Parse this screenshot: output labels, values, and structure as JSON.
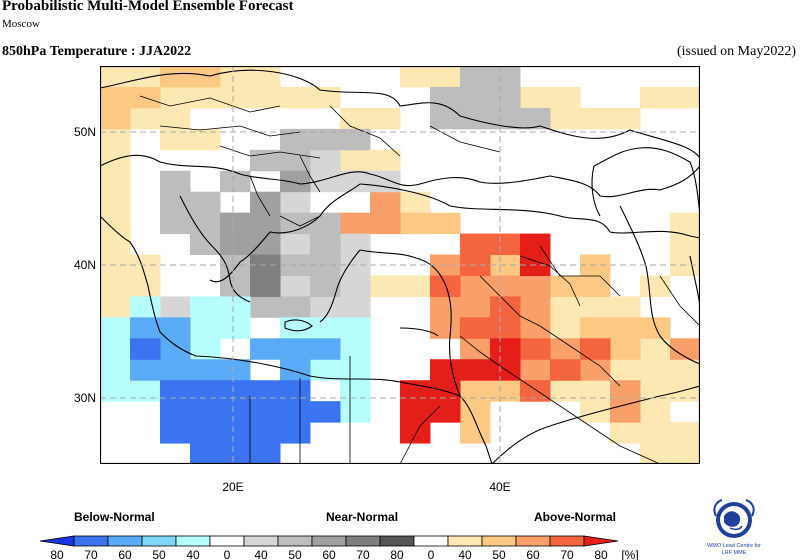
{
  "header": {
    "title": "Probabilistic Multi-Model Ensemble Forecast",
    "subtitle": "Moscow",
    "variable": "850hPa Temperature : JJA2022",
    "issued": "(issued on May2022)"
  },
  "map": {
    "lat_ticks": [
      "50N",
      "40N",
      "30N"
    ],
    "lon_ticks": [
      "20E",
      "40E"
    ],
    "colors": {
      "above": [
        "#fbe8b3",
        "#fcc984",
        "#f9a06a",
        "#f3643f",
        "#e41f1a"
      ],
      "near": [
        "#d6d6d6",
        "#bdbdbd",
        "#a0a0a0",
        "#7f7f7f",
        "#555555"
      ],
      "below": [
        "#b6fdfd",
        "#7fd6f7",
        "#5aabf5",
        "#3b74f0",
        "#1a36e6"
      ]
    },
    "cells": [
      {
        "c": "A1",
        "r": [
          [
            0,
            0,
            2,
            1
          ],
          [
            4,
            0,
            2,
            1
          ],
          [
            2,
            1,
            6,
            1
          ],
          [
            10,
            0,
            2,
            1
          ],
          [
            12,
            1,
            4,
            1
          ],
          [
            16,
            2,
            2,
            1
          ],
          [
            18,
            1,
            2,
            1
          ],
          [
            14,
            2,
            2,
            1
          ],
          [
            8,
            2,
            2,
            1
          ],
          [
            1,
            2,
            2,
            1
          ],
          [
            0,
            3,
            1,
            5
          ],
          [
            0,
            8,
            1,
            5
          ],
          [
            1,
            9,
            1,
            4
          ],
          [
            0,
            13,
            1,
            2
          ],
          [
            19,
            7,
            1,
            3
          ],
          [
            17,
            11,
            1,
            1
          ],
          [
            15,
            11,
            3,
            1
          ],
          [
            18,
            10,
            1,
            1
          ],
          [
            14,
            12,
            2,
            1
          ],
          [
            18,
            13,
            2,
            1
          ],
          [
            17,
            14,
            3,
            1
          ],
          [
            15,
            15,
            5,
            1
          ],
          [
            16,
            16,
            3,
            1
          ],
          [
            17,
            17,
            3,
            1
          ],
          [
            18,
            18,
            2,
            1
          ],
          [
            17,
            16,
            1,
            1
          ],
          [
            9,
            10,
            1,
            1
          ],
          [
            10,
            10,
            3,
            1
          ],
          [
            13,
            9,
            2,
            1
          ],
          [
            10,
            6,
            1,
            2
          ],
          [
            8,
            4,
            2,
            1
          ],
          [
            2,
            3,
            2,
            1
          ]
        ]
      },
      {
        "c": "A2",
        "r": [
          [
            1,
            1,
            1,
            1
          ],
          [
            2,
            0,
            2,
            1
          ],
          [
            0,
            1,
            1,
            1
          ],
          [
            0,
            2,
            1,
            1
          ],
          [
            9,
            7,
            3,
            1
          ],
          [
            12,
            8,
            3,
            1
          ],
          [
            13,
            9,
            1,
            1
          ],
          [
            16,
            9,
            1,
            2
          ],
          [
            13,
            13,
            2,
            1
          ],
          [
            12,
            15,
            2,
            1
          ],
          [
            11,
            14,
            2,
            1
          ],
          [
            10,
            17,
            1,
            1
          ],
          [
            12,
            16,
            1,
            2
          ],
          [
            16,
            12,
            3,
            1
          ],
          [
            17,
            13,
            1,
            1
          ],
          [
            15,
            10,
            2,
            1
          ]
        ]
      },
      {
        "c": "A3",
        "r": [
          [
            9,
            6,
            1,
            2
          ],
          [
            8,
            7,
            1,
            1
          ],
          [
            11,
            9,
            1,
            1
          ],
          [
            12,
            10,
            3,
            1
          ],
          [
            14,
            11,
            1,
            1
          ],
          [
            11,
            11,
            1,
            1
          ],
          [
            12,
            11,
            2,
            1
          ],
          [
            11,
            12,
            2,
            1
          ],
          [
            14,
            12,
            1,
            1
          ],
          [
            12,
            13,
            1,
            1
          ],
          [
            15,
            13,
            1,
            2
          ],
          [
            14,
            14,
            1,
            1
          ],
          [
            16,
            14,
            1,
            1
          ],
          [
            17,
            15,
            1,
            2
          ],
          [
            19,
            13,
            1,
            1
          ]
        ]
      },
      {
        "c": "A4",
        "r": [
          [
            12,
            8,
            1,
            2
          ],
          [
            13,
            8,
            2,
            1
          ],
          [
            13,
            11,
            1,
            1
          ],
          [
            11,
            10,
            1,
            1
          ],
          [
            13,
            12,
            1,
            1
          ],
          [
            12,
            12,
            1,
            1
          ],
          [
            14,
            13,
            1,
            1
          ],
          [
            16,
            13,
            1,
            1
          ],
          [
            15,
            14,
            1,
            1
          ],
          [
            11,
            15,
            1,
            2
          ],
          [
            14,
            15,
            1,
            1
          ]
        ]
      },
      {
        "c": "A5",
        "r": [
          [
            14,
            8,
            1,
            2
          ],
          [
            13,
            13,
            1,
            1
          ],
          [
            12,
            14,
            2,
            1
          ],
          [
            11,
            14,
            1,
            1
          ],
          [
            11,
            15,
            1,
            1
          ],
          [
            10,
            15,
            1,
            1
          ],
          [
            10,
            16,
            1,
            1
          ],
          [
            11,
            16,
            1,
            1
          ],
          [
            10,
            17,
            1,
            1
          ]
        ]
      },
      {
        "c": "N1",
        "r": [
          [
            7,
            4,
            1,
            1
          ],
          [
            7,
            5,
            3,
            1
          ],
          [
            6,
            6,
            1,
            1
          ],
          [
            6,
            8,
            1,
            1
          ],
          [
            8,
            8,
            1,
            1
          ],
          [
            8,
            9,
            1,
            1
          ],
          [
            6,
            10,
            1,
            1
          ],
          [
            8,
            10,
            1,
            1
          ],
          [
            8,
            11,
            1,
            1
          ],
          [
            7,
            11,
            1,
            1
          ],
          [
            1,
            11,
            2,
            1
          ],
          [
            0,
            12,
            1,
            1
          ]
        ]
      },
      {
        "c": "N2",
        "r": [
          [
            12,
            0,
            2,
            1
          ],
          [
            11,
            1,
            2,
            1
          ],
          [
            11,
            2,
            4,
            1
          ],
          [
            13,
            1,
            1,
            1
          ],
          [
            8,
            3,
            1,
            1
          ],
          [
            6,
            3,
            2,
            1
          ],
          [
            5,
            4,
            2,
            1
          ],
          [
            4,
            5,
            1,
            1
          ],
          [
            2,
            5,
            1,
            1
          ],
          [
            2,
            6,
            2,
            1
          ],
          [
            2,
            7,
            2,
            1
          ],
          [
            3,
            8,
            2,
            1
          ],
          [
            4,
            9,
            2,
            1
          ],
          [
            4,
            10,
            2,
            1
          ],
          [
            5,
            11,
            1,
            1
          ],
          [
            6,
            7,
            1,
            1
          ],
          [
            7,
            7,
            1,
            1
          ],
          [
            7,
            8,
            1,
            1
          ],
          [
            6,
            9,
            2,
            1
          ],
          [
            7,
            10,
            1,
            1
          ],
          [
            6,
            11,
            1,
            1
          ]
        ]
      },
      {
        "c": "N3",
        "r": [
          [
            5,
            6,
            1,
            1
          ],
          [
            4,
            7,
            1,
            1
          ],
          [
            5,
            7,
            1,
            1
          ],
          [
            4,
            8,
            1,
            1
          ],
          [
            5,
            8,
            1,
            1
          ],
          [
            6,
            5,
            1,
            1
          ]
        ]
      },
      {
        "c": "N4",
        "r": [
          [
            5,
            9,
            1,
            1
          ],
          [
            5,
            10,
            1,
            1
          ]
        ]
      },
      {
        "c": "B1",
        "r": [
          [
            1,
            11,
            1,
            1
          ],
          [
            3,
            11,
            2,
            1
          ],
          [
            0,
            12,
            1,
            2
          ],
          [
            1,
            12,
            1,
            1
          ],
          [
            3,
            12,
            2,
            1
          ],
          [
            6,
            12,
            3,
            1
          ],
          [
            3,
            13,
            1,
            1
          ],
          [
            0,
            14,
            1,
            1
          ],
          [
            0,
            15,
            2,
            1
          ],
          [
            7,
            14,
            2,
            1
          ],
          [
            8,
            15,
            1,
            1
          ],
          [
            7,
            16,
            1,
            1
          ],
          [
            8,
            16,
            1,
            1
          ],
          [
            8,
            13,
            1,
            1
          ]
        ]
      },
      {
        "c": "B2",
        "r": [
          [
            1,
            12,
            2,
            1
          ],
          [
            2,
            13,
            1,
            1
          ],
          [
            1,
            14,
            4,
            1
          ],
          [
            5,
            13,
            3,
            1
          ],
          [
            6,
            14,
            1,
            1
          ]
        ]
      },
      {
        "c": "B3",
        "r": [
          [
            1,
            13,
            1,
            1
          ],
          [
            2,
            15,
            4,
            1
          ],
          [
            2,
            16,
            6,
            1
          ],
          [
            2,
            17,
            4,
            1
          ],
          [
            6,
            15,
            1,
            1
          ],
          [
            3,
            18,
            3,
            1
          ],
          [
            5,
            17,
            2,
            1
          ]
        ]
      }
    ]
  }
}
